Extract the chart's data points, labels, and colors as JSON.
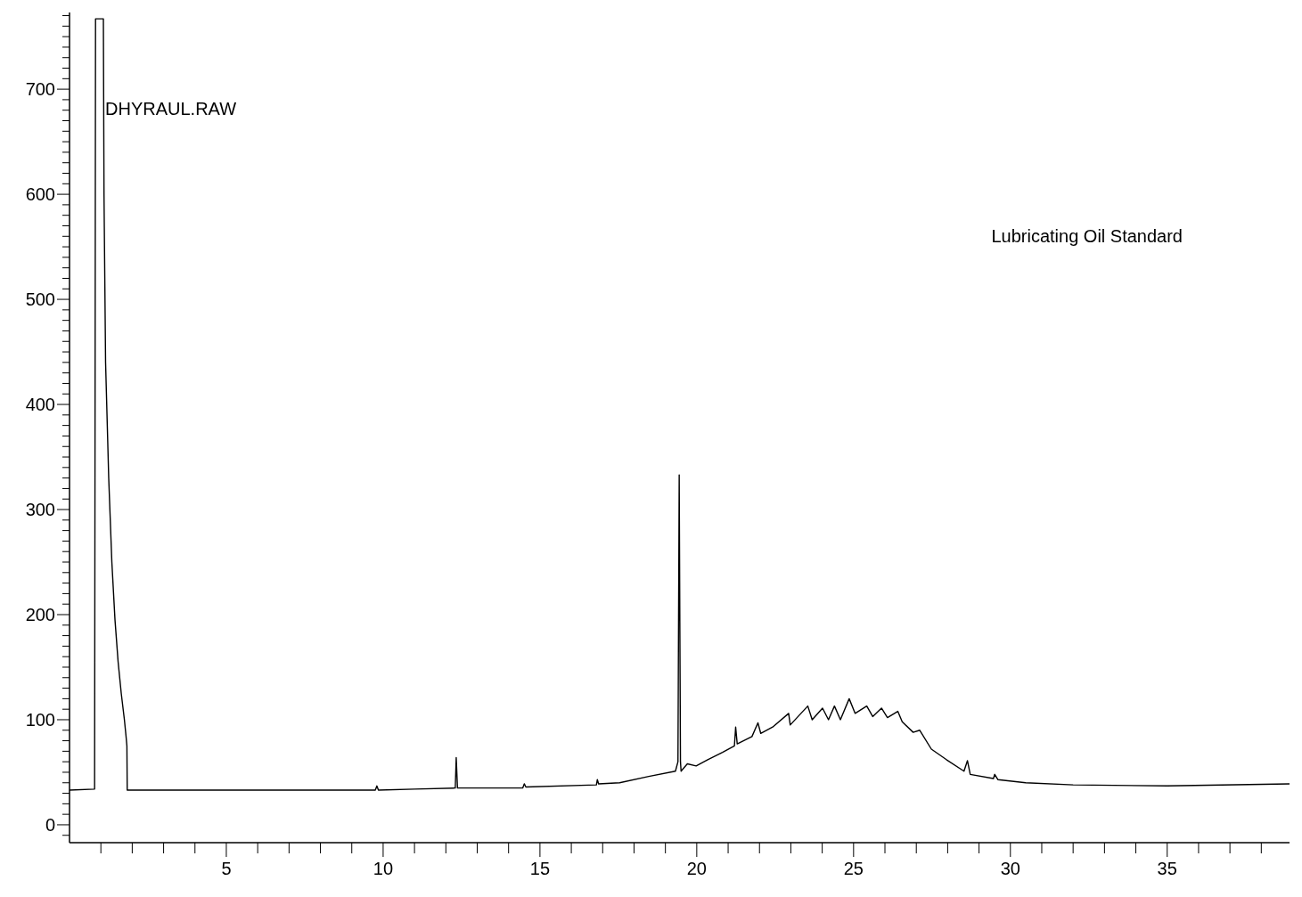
{
  "chart_data": {
    "type": "line",
    "annotations": [
      "DHYRAUL.RAW",
      "Lubricating Oil Standard"
    ],
    "series": [
      {
        "color": "#000000",
        "x": [
          0,
          0.8,
          0.83,
          1.08,
          1.1,
          1.15,
          1.25,
          1.35,
          1.45,
          1.55,
          1.65,
          1.75,
          1.8,
          1.83,
          1.84,
          9.75,
          9.8,
          9.85,
          11,
          12.3,
          12.33,
          12.37,
          14.45,
          14.5,
          14.55,
          16.8,
          16.83,
          16.87,
          17.54,
          18.47,
          19.32,
          19.4,
          19.44,
          19.48,
          19.5,
          19.7,
          19.98,
          20.35,
          20.82,
          21.2,
          21.24,
          21.29,
          21.76,
          21.95,
          22.04,
          22.42,
          22.93,
          22.98,
          23.54,
          23.68,
          24.01,
          24.2,
          24.39,
          24.58,
          24.86,
          25.05,
          25.42,
          25.61,
          25.89,
          26.08,
          26.41,
          26.55,
          26.9,
          27.11,
          27.48,
          27.96,
          28.52,
          28.63,
          28.72,
          29.46,
          29.5,
          29.6,
          30.49,
          32,
          35,
          38.9
        ],
        "values": [
          33,
          34,
          767,
          767,
          600,
          440,
          330,
          250,
          195,
          155,
          125,
          100,
          85,
          75,
          33,
          33,
          37,
          33,
          34,
          35,
          64,
          35,
          35,
          39,
          36,
          38,
          43,
          39,
          40,
          46,
          51,
          60,
          333,
          60,
          51,
          58,
          56,
          62,
          69,
          75,
          93,
          77,
          84,
          97,
          87,
          93,
          106,
          95,
          113,
          100,
          111,
          100,
          113,
          100,
          120,
          106,
          113,
          103,
          111,
          102,
          108,
          98,
          88,
          90,
          72,
          62,
          51,
          61,
          48,
          44,
          48,
          43,
          40,
          38,
          37,
          39
        ]
      }
    ],
    "xlim": [
      0,
      38.9
    ],
    "ylim": [
      -17,
      773
    ],
    "xticks": [
      {
        "value": 1,
        "label": null
      },
      {
        "value": 2,
        "label": null
      },
      {
        "value": 3,
        "label": null
      },
      {
        "value": 4,
        "label": null
      },
      5,
      {
        "value": 6,
        "label": null
      },
      {
        "value": 7,
        "label": null
      },
      {
        "value": 8,
        "label": null
      },
      {
        "value": 9,
        "label": null
      },
      10,
      {
        "value": 11,
        "label": null
      },
      {
        "value": 12,
        "label": null
      },
      {
        "value": 13,
        "label": null
      },
      {
        "value": 14,
        "label": null
      },
      15,
      {
        "value": 16,
        "label": null
      },
      {
        "value": 17,
        "label": null
      },
      {
        "value": 18,
        "label": null
      },
      {
        "value": 19,
        "label": null
      },
      20,
      {
        "value": 21,
        "label": null
      },
      {
        "value": 22,
        "label": null
      },
      {
        "value": 23,
        "label": null
      },
      {
        "value": 24,
        "label": null
      },
      25,
      {
        "value": 26,
        "label": null
      },
      {
        "value": 27,
        "label": null
      },
      {
        "value": 28,
        "label": null
      },
      {
        "value": 29,
        "label": null
      },
      30,
      {
        "value": 31,
        "label": null
      },
      {
        "value": 32,
        "label": null
      },
      {
        "value": 33,
        "label": null
      },
      {
        "value": 34,
        "label": null
      },
      35,
      {
        "value": 36,
        "label": null
      },
      {
        "value": 37,
        "label": null
      },
      {
        "value": 38,
        "label": null
      }
    ],
    "yticks": [
      {
        "value": -10,
        "label": null
      },
      0,
      {
        "value": 10,
        "label": null
      },
      {
        "value": 20,
        "label": null
      },
      {
        "value": 30,
        "label": null
      },
      {
        "value": 40,
        "label": null
      },
      {
        "value": 50,
        "label": null
      },
      {
        "value": 60,
        "label": null
      },
      {
        "value": 70,
        "label": null
      },
      {
        "value": 80,
        "label": null
      },
      {
        "value": 90,
        "label": null
      },
      100,
      {
        "value": 110,
        "label": null
      },
      {
        "value": 120,
        "label": null
      },
      {
        "value": 130,
        "label": null
      },
      {
        "value": 140,
        "label": null
      },
      {
        "value": 150,
        "label": null
      },
      {
        "value": 160,
        "label": null
      },
      {
        "value": 170,
        "label": null
      },
      {
        "value": 180,
        "label": null
      },
      {
        "value": 190,
        "label": null
      },
      200,
      {
        "value": 210,
        "label": null
      },
      {
        "value": 220,
        "label": null
      },
      {
        "value": 230,
        "label": null
      },
      {
        "value": 240,
        "label": null
      },
      {
        "value": 250,
        "label": null
      },
      {
        "value": 260,
        "label": null
      },
      {
        "value": 270,
        "label": null
      },
      {
        "value": 280,
        "label": null
      },
      {
        "value": 290,
        "label": null
      },
      300,
      {
        "value": 310,
        "label": null
      },
      {
        "value": 320,
        "label": null
      },
      {
        "value": 330,
        "label": null
      },
      {
        "value": 340,
        "label": null
      },
      {
        "value": 350,
        "label": null
      },
      {
        "value": 360,
        "label": null
      },
      {
        "value": 370,
        "label": null
      },
      {
        "value": 380,
        "label": null
      },
      {
        "value": 390,
        "label": null
      },
      400,
      {
        "value": 410,
        "label": null
      },
      {
        "value": 420,
        "label": null
      },
      {
        "value": 430,
        "label": null
      },
      {
        "value": 440,
        "label": null
      },
      {
        "value": 450,
        "label": null
      },
      {
        "value": 460,
        "label": null
      },
      {
        "value": 470,
        "label": null
      },
      {
        "value": 480,
        "label": null
      },
      {
        "value": 490,
        "label": null
      },
      500,
      {
        "value": 510,
        "label": null
      },
      {
        "value": 520,
        "label": null
      },
      {
        "value": 530,
        "label": null
      },
      {
        "value": 540,
        "label": null
      },
      {
        "value": 550,
        "label": null
      },
      {
        "value": 560,
        "label": null
      },
      {
        "value": 570,
        "label": null
      },
      {
        "value": 580,
        "label": null
      },
      {
        "value": 590,
        "label": null
      },
      600,
      {
        "value": 610,
        "label": null
      },
      {
        "value": 620,
        "label": null
      },
      {
        "value": 630,
        "label": null
      },
      {
        "value": 640,
        "label": null
      },
      {
        "value": 650,
        "label": null
      },
      {
        "value": 660,
        "label": null
      },
      {
        "value": 670,
        "label": null
      },
      {
        "value": 680,
        "label": null
      },
      {
        "value": 690,
        "label": null
      },
      700,
      {
        "value": 710,
        "label": null
      },
      {
        "value": 720,
        "label": null
      },
      {
        "value": 730,
        "label": null
      },
      {
        "value": 740,
        "label": null
      },
      {
        "value": 750,
        "label": null
      },
      {
        "value": 760,
        "label": null
      },
      {
        "value": 770,
        "label": null
      }
    ],
    "grid": false,
    "marker": "none",
    "line_style": "solid"
  }
}
